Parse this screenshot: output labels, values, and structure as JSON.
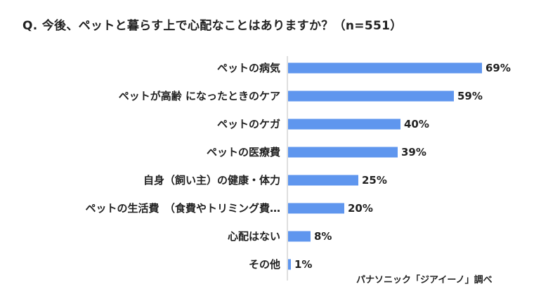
{
  "title": "Q. 今後、ペットと暮らす上で心配なことはありますか？（n=551）",
  "source": "パナソニック「ジアイーノ」調べ",
  "colors": {
    "bar": "#5f96ee",
    "axis": "#bfbfbf"
  },
  "chart_data": {
    "type": "bar",
    "orientation": "horizontal",
    "categories": [
      "ペットの病気",
      "ペットが高齢 になったときのケア",
      "ペットのケガ",
      "ペットの医療費",
      "自身（飼い主）の健康・体力",
      "ペットの生活費　（食費やトリミング費…",
      "心配はない",
      "その他"
    ],
    "values": [
      69,
      59,
      40,
      39,
      25,
      20,
      8,
      1
    ],
    "value_labels": [
      "69%",
      "59%",
      "40%",
      "39%",
      "25%",
      "20%",
      "8%",
      "1%"
    ],
    "unit": "%",
    "xlim": [
      0,
      100
    ],
    "grid": false,
    "legend": "none"
  }
}
